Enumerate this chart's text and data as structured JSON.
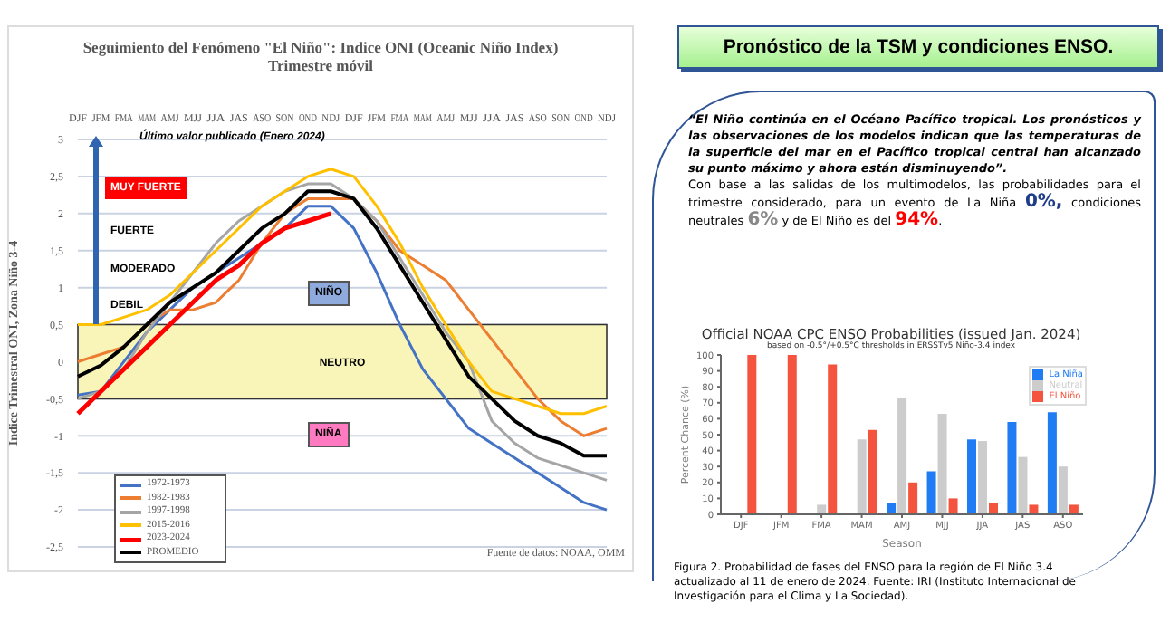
{
  "chart_data": [
    {
      "type": "line",
      "title": "Seguimiento del Fenómeno \"El Niño\": Indice ONI (Oceanic Niño Index)",
      "subtitle": "Trimestre móvil",
      "ylabel": "Indice Trimestral ONI, Zona Niño 3-4",
      "categories": [
        "DJF",
        "JFM",
        "FMA",
        "MAM",
        "AMJ",
        "MJJ",
        "JJA",
        "JAS",
        "ASO",
        "SON",
        "OND",
        "NDJ",
        "DJF",
        "JFM",
        "FMA",
        "MAM",
        "AMJ",
        "MJJ",
        "JJA",
        "JAS",
        "ASO",
        "SON",
        "OND",
        "NDJ"
      ],
      "series": [
        {
          "name": "1972-1973",
          "color": "#4472c4",
          "values": [
            -0.45,
            -0.4,
            0.0,
            0.4,
            0.7,
            1.0,
            1.2,
            1.4,
            1.6,
            1.8,
            2.1,
            2.1,
            1.8,
            1.2,
            0.5,
            -0.1,
            -0.5,
            -0.9,
            -1.1,
            -1.3,
            -1.5,
            -1.7,
            -1.9,
            -2.0
          ]
        },
        {
          "name": "1982-1983",
          "color": "#ed7d31",
          "values": [
            0.0,
            0.1,
            0.2,
            0.5,
            0.7,
            0.7,
            0.8,
            1.1,
            1.6,
            2.0,
            2.2,
            2.2,
            2.2,
            1.9,
            1.5,
            1.3,
            1.1,
            0.7,
            0.3,
            -0.1,
            -0.5,
            -0.8,
            -1.0,
            -0.9
          ]
        },
        {
          "name": "1997-1998",
          "color": "#a5a5a5",
          "values": [
            -0.5,
            -0.4,
            -0.1,
            0.4,
            0.8,
            1.2,
            1.6,
            1.9,
            2.1,
            2.3,
            2.4,
            2.4,
            2.2,
            1.9,
            1.4,
            0.9,
            0.4,
            0.0,
            -0.8,
            -1.1,
            -1.3,
            -1.4,
            -1.5,
            -1.6
          ]
        },
        {
          "name": "2015-2016",
          "color": "#ffc000",
          "values": [
            0.5,
            0.5,
            0.6,
            0.7,
            0.9,
            1.2,
            1.5,
            1.8,
            2.1,
            2.3,
            2.5,
            2.6,
            2.5,
            2.1,
            1.6,
            1.0,
            0.5,
            0.0,
            -0.4,
            -0.5,
            -0.6,
            -0.7,
            -0.7,
            -0.6
          ]
        },
        {
          "name": "2023-2024",
          "color": "#ff0000",
          "values": [
            -0.7,
            -0.4,
            -0.1,
            0.2,
            0.5,
            0.8,
            1.1,
            1.3,
            1.6,
            1.8,
            1.9,
            2.0,
            null,
            null,
            null,
            null,
            null,
            null,
            null,
            null,
            null,
            null,
            null,
            null
          ]
        },
        {
          "name": "PROMEDIO",
          "color": "#000000",
          "values": [
            -0.2,
            -0.05,
            0.2,
            0.5,
            0.8,
            1.0,
            1.2,
            1.5,
            1.8,
            2.0,
            2.3,
            2.3,
            2.2,
            1.8,
            1.3,
            0.8,
            0.3,
            -0.2,
            -0.5,
            -0.8,
            -1.0,
            -1.1,
            -1.27,
            -1.27
          ]
        }
      ],
      "ylim": [
        -2.5,
        3
      ],
      "yticks": [
        {
          "value": -2.5,
          "label": "-2,5"
        },
        -2,
        {
          "value": -1.5,
          "label": "-1,5"
        },
        -1,
        {
          "value": -0.5,
          "label": "-0,5"
        },
        0,
        {
          "value": 0.5,
          "label": "0,5"
        },
        1,
        {
          "value": 1.5,
          "label": "1,5"
        },
        2,
        {
          "value": 2.5,
          "label": "2,5"
        },
        3
      ],
      "grid": "y",
      "legend": "bottom left",
      "marker": "none",
      "line_style": "solid",
      "bands": [
        {
          "axis": "y",
          "from": -0.5,
          "to": 0.5,
          "label": "NEUTRO",
          "color": "#f9f5b8"
        }
      ],
      "annotations": [
        "MUY FUERTE",
        "FUERTE",
        "MODERADO",
        "DEBIL",
        "NIÑO",
        "NIÑA",
        "Último valor publicado  (Enero 2024)",
        "Fuente de datos: NOAA, OMM"
      ]
    },
    {
      "type": "other",
      "title": "Pronóstico de la TSM y condiciones ENSO.",
      "annotations": [
        "“El Niño continúa en el Océano Pacífico tropical. Los pronósticos y las observaciones de los modelos indican que las temperaturas de la superficie del mar en el Pacífico tropical central han alcanzado su punto máximo y ahora están disminuyendo”.",
        "Con base a las salidas de los multimodelos, las probabilidades para el trimestre considerado, para un evento de La Niña ",
        "0%,",
        " condiciones neutrales ",
        "6%",
        " y de El Niño es del ",
        "94%",
        "."
      ]
    },
    {
      "type": "bar",
      "title": "Official NOAA CPC ENSO Probabilities (issued Jan. 2024)",
      "subtitle": "based on -0.5°/+0.5°C thresholds in ERSSTv5 Niño-3.4 index",
      "xlabel": "Season",
      "ylabel": "Percent Chance (%)",
      "categories": [
        "DJF",
        "JFM",
        "FMA",
        "MAM",
        "AMJ",
        "MJJ",
        "JJA",
        "JAS",
        "ASO"
      ],
      "series": [
        {
          "name": "La Niña",
          "color": "#1f7cf2",
          "values": [
            0,
            0,
            0,
            0,
            7,
            27,
            47,
            58,
            64
          ]
        },
        {
          "name": "Neutral",
          "color": "#cccccc",
          "values": [
            0,
            0,
            6,
            47,
            73,
            63,
            46,
            36,
            30
          ]
        },
        {
          "name": "El Niño",
          "color": "#f4533e",
          "values": [
            100,
            100,
            94,
            53,
            20,
            10,
            7,
            6,
            6
          ]
        }
      ],
      "ylim": [
        0,
        100
      ],
      "yticks": [
        0,
        10,
        20,
        30,
        40,
        50,
        60,
        70,
        80,
        90,
        100
      ],
      "legend": "top right",
      "annotations": [
        "Figura 2. Probabilidad de fases del ENSO para la región de El Niño 3.4 actualizado al 11 de enero de 2024. Fuente: IRI (Instituto Internacional de Investigación para el Clima y La Sociedad)."
      ]
    }
  ]
}
